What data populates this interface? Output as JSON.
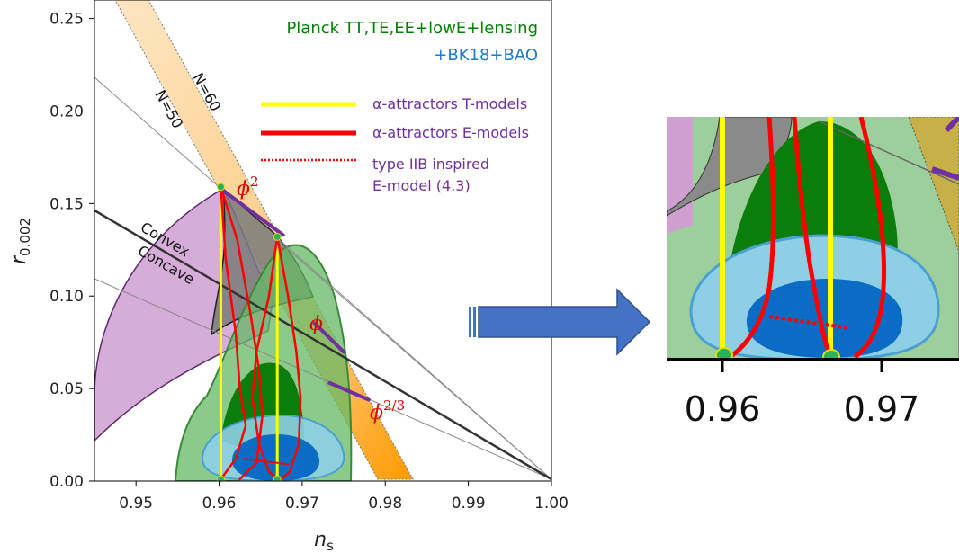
{
  "chart_data": {
    "type": "line",
    "xlabel": "n",
    "xlabel_sub": "s",
    "ylabel": "r",
    "ylabel_sub": "0.002",
    "xlim": [
      0.945,
      1.0
    ],
    "ylim": [
      0.0,
      0.26
    ],
    "xticks": [
      {
        "value": 0.95,
        "label": "0.95"
      },
      {
        "value": 0.96,
        "label": "0.96"
      },
      {
        "value": 0.97,
        "label": "0.97"
      },
      {
        "value": 0.98,
        "label": "0.98"
      },
      {
        "value": 0.99,
        "label": "0.99"
      },
      {
        "value": 1.0,
        "label": "1.00"
      }
    ],
    "yticks": [
      {
        "value": 0.0,
        "label": "0.00"
      },
      {
        "value": 0.05,
        "label": "0.05"
      },
      {
        "value": 0.1,
        "label": "0.10"
      },
      {
        "value": 0.15,
        "label": "0.15"
      },
      {
        "value": 0.2,
        "label": "0.20"
      },
      {
        "value": 0.25,
        "label": "0.25"
      }
    ],
    "dataset_title_line1": "Planck TT,TE,EE+lowE+lensing",
    "dataset_title_line2": "+BK18+BAO",
    "colors": {
      "planck": "#008000",
      "bk18": "#1f78d1",
      "t_models": "#ffff00",
      "e_models": "#ff0000",
      "purple": "#7030a0",
      "n_band": "#ffa500",
      "convex_line": "#333333",
      "ref_lines": "#888888"
    },
    "legend": [
      {
        "label": "α-attractors T-models",
        "style": "yellow-solid"
      },
      {
        "label": "α-attractors E-models",
        "style": "red-solid"
      },
      {
        "label": "type IIB inspired",
        "label2": "E-model (4.3)",
        "style": "red-dotted"
      }
    ],
    "line_labels": {
      "n60": "N=60",
      "n50": "N=50",
      "convex": "Convex",
      "concave": "Concave"
    },
    "monomial_labels": [
      {
        "base": "ϕ",
        "exp": "2",
        "x": 0.9605,
        "y": 0.159
      },
      {
        "base": "ϕ",
        "exp": "",
        "x": 0.9733,
        "y": 0.0853
      },
      {
        "base": "ϕ",
        "exp": "2/3",
        "x": 0.978,
        "y": 0.044
      }
    ],
    "series": [
      {
        "style": "t-models",
        "points": [
          [
            0.9602,
            0.159
          ],
          [
            0.9602,
            0.001
          ]
        ]
      },
      {
        "style": "t-models",
        "points": [
          [
            0.967,
            0.132
          ],
          [
            0.967,
            0.001
          ]
        ]
      },
      {
        "style": "e-models",
        "points": [
          [
            0.9602,
            0.159
          ],
          [
            0.9608,
            0.12
          ],
          [
            0.962,
            0.08
          ],
          [
            0.9625,
            0.05
          ],
          [
            0.9632,
            0.03
          ],
          [
            0.962,
            0.012
          ],
          [
            0.9602,
            0.001
          ]
        ]
      },
      {
        "style": "e-models",
        "points": [
          [
            0.9602,
            0.159
          ],
          [
            0.9622,
            0.13
          ],
          [
            0.9638,
            0.09
          ],
          [
            0.9648,
            0.06
          ],
          [
            0.9652,
            0.035
          ],
          [
            0.9645,
            0.01
          ],
          [
            0.9625,
            0.001
          ]
        ]
      },
      {
        "style": "e-models",
        "points": [
          [
            0.967,
            0.132
          ],
          [
            0.9683,
            0.1
          ],
          [
            0.9693,
            0.07
          ],
          [
            0.9698,
            0.045
          ],
          [
            0.9696,
            0.02
          ],
          [
            0.9685,
            0.005
          ],
          [
            0.9675,
            0.001
          ]
        ]
      },
      {
        "style": "e-models",
        "points": [
          [
            0.967,
            0.132
          ],
          [
            0.966,
            0.1
          ],
          [
            0.9645,
            0.07
          ],
          [
            0.964,
            0.045
          ],
          [
            0.9648,
            0.02
          ],
          [
            0.966,
            0.005
          ],
          [
            0.967,
            0.001
          ]
        ]
      },
      {
        "style": "type-iib",
        "points": [
          [
            0.963,
            0.012
          ],
          [
            0.9685,
            0.009
          ]
        ]
      },
      {
        "style": "monomial",
        "points": [
          [
            0.9605,
            0.157
          ],
          [
            0.9677,
            0.133
          ]
        ]
      },
      {
        "style": "monomial",
        "points": [
          [
            0.9715,
            0.0853
          ],
          [
            0.975,
            0.0698
          ]
        ]
      },
      {
        "style": "monomial",
        "points": [
          [
            0.9733,
            0.053
          ],
          [
            0.978,
            0.044
          ]
        ]
      }
    ],
    "markers": [
      {
        "x": 0.9602,
        "y": 0.159
      },
      {
        "x": 0.967,
        "y": 0.132
      },
      {
        "x": 0.9602,
        "y": 0.001
      },
      {
        "x": 0.967,
        "y": 0.001
      }
    ],
    "zoom_inset": {
      "xticks": [
        {
          "value": 0.96,
          "label": "0.96"
        },
        {
          "value": 0.97,
          "label": "0.97"
        }
      ]
    }
  }
}
